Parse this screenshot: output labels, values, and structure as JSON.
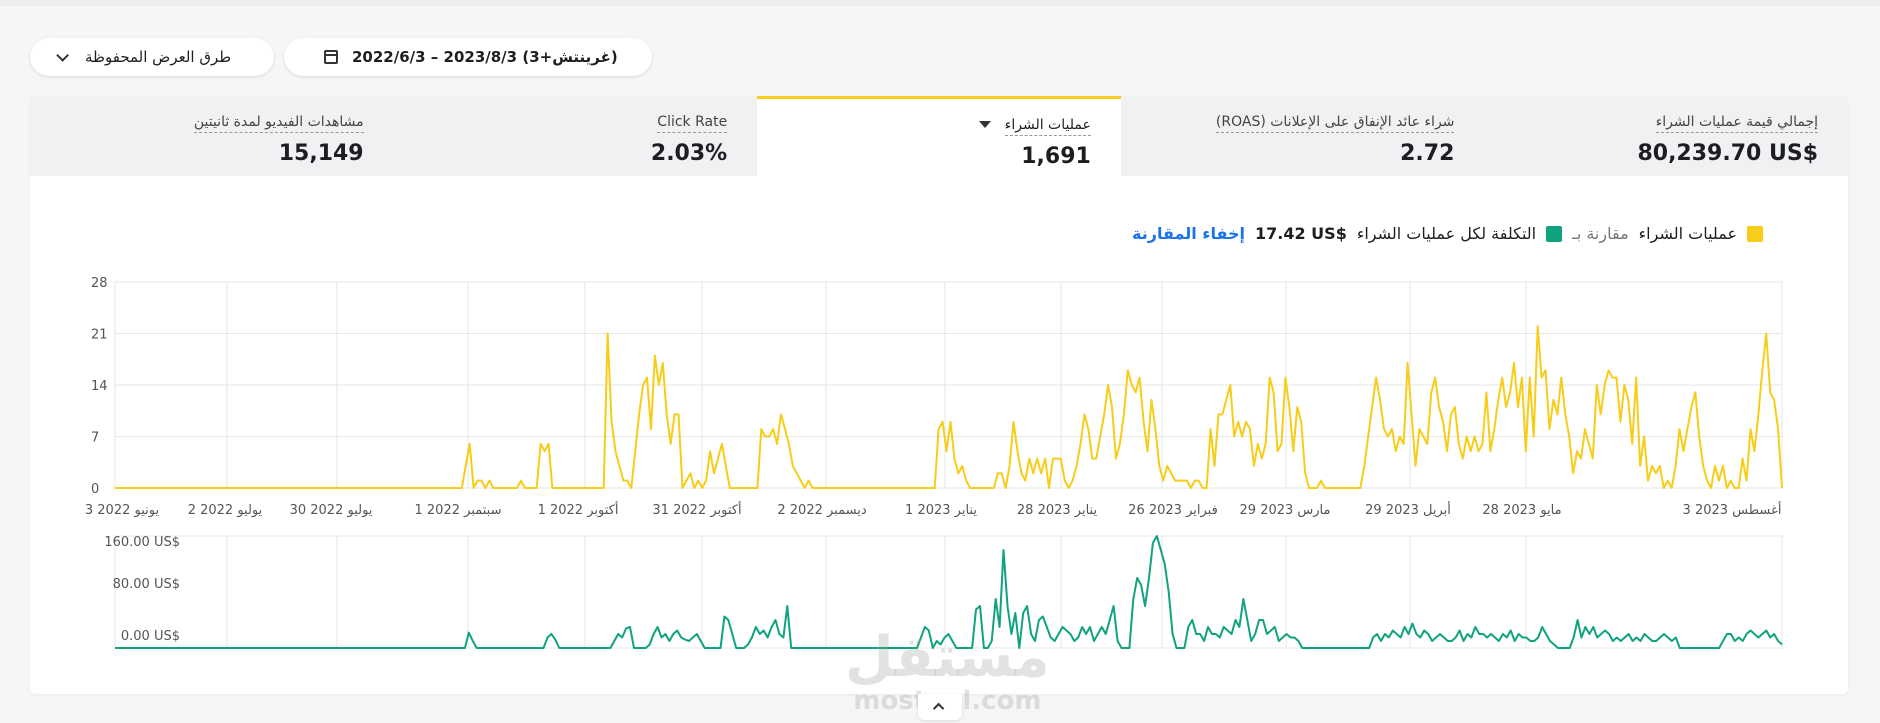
{
  "toolbar": {
    "saved_views_label": "طرق العرض المحفوظة",
    "date_range_label": "2022/6/3 – 2023/8/3 (غرينتش+3)"
  },
  "metrics": [
    {
      "label": "إجمالي قيمة عمليات الشراء",
      "value": "80,239.70 US$"
    },
    {
      "label": "شراء عائد الإنفاق على الإعلانات (ROAS)",
      "value": "2.72"
    },
    {
      "label": "عمليات الشراء",
      "value": "1,691",
      "active": true
    },
    {
      "label": "Click Rate",
      "value": "2.03%"
    },
    {
      "label": "مشاهدات الفيديو لمدة ثانيتين",
      "value": "15,149"
    }
  ],
  "legend": {
    "primary": "عمليات الشراء",
    "compare_prefix": "مقارنة بـ",
    "secondary": "التكلفة لكل عمليات الشراء",
    "secondary_value": "17.42 US$",
    "hide_link": "إخفاء المقارنة"
  },
  "colors": {
    "primary": "#f7cd19",
    "secondary": "#0fa37f",
    "link": "#1a73e8",
    "active_tab": "#f7cd19"
  },
  "chart_data": [
    {
      "type": "line",
      "title": "",
      "series": [
        {
          "name": "عمليات الشراء",
          "values": [
            0,
            0,
            0,
            0,
            0,
            0,
            0,
            0,
            0,
            0,
            0,
            0,
            0,
            0,
            0,
            0,
            0,
            0,
            0,
            0,
            0,
            0,
            0,
            0,
            0,
            0,
            0,
            0,
            0,
            0,
            0,
            0,
            0,
            0,
            0,
            0,
            0,
            0,
            0,
            0,
            0,
            0,
            0,
            0,
            0,
            0,
            0,
            0,
            0,
            0,
            0,
            0,
            0,
            0,
            0,
            0,
            0,
            0,
            0,
            0,
            0,
            0,
            0,
            0,
            0,
            0,
            0,
            0,
            0,
            0,
            0,
            0,
            0,
            0,
            0,
            0,
            0,
            0,
            0,
            0,
            0,
            0,
            0,
            0,
            0,
            0,
            0,
            0,
            0,
            3,
            6,
            0,
            1,
            1,
            0,
            1,
            0,
            0,
            0,
            0,
            0,
            0,
            0,
            1,
            0,
            0,
            0,
            0,
            6,
            5,
            6,
            0,
            0,
            0,
            0,
            0,
            0,
            0,
            0,
            0,
            0,
            0,
            0,
            0,
            0,
            21,
            9,
            5,
            3,
            1,
            1,
            0,
            5,
            10,
            14,
            15,
            8,
            18,
            14,
            17,
            10,
            6,
            10,
            10,
            0,
            1,
            2,
            0,
            1,
            0,
            1,
            5,
            2,
            4,
            6,
            3,
            0,
            0,
            0,
            0,
            0,
            0,
            0,
            0,
            8,
            7,
            7,
            8,
            6,
            10,
            8,
            6,
            3,
            2,
            1,
            0,
            1,
            0,
            0,
            0,
            0,
            0,
            0,
            0,
            0,
            0,
            0,
            0,
            0,
            0,
            0,
            0,
            0,
            0,
            0,
            0,
            0,
            0,
            0,
            0,
            0,
            0,
            0,
            0,
            0,
            0,
            0,
            0,
            0,
            8,
            9,
            5,
            9,
            4,
            2,
            3,
            1,
            0,
            0,
            0,
            0,
            0,
            0,
            0,
            2,
            2,
            0,
            3,
            9,
            5,
            2,
            1,
            4,
            2,
            4,
            2,
            4,
            0,
            4,
            4,
            4,
            1,
            0,
            1,
            3,
            6,
            10,
            8,
            4,
            4,
            7,
            10,
            14,
            11,
            4,
            6,
            10,
            16,
            14,
            13,
            15,
            9,
            5,
            12,
            8,
            3,
            1,
            3,
            2,
            1,
            1,
            1,
            1,
            0,
            1,
            1,
            0,
            0,
            8,
            3,
            10,
            10,
            12,
            14,
            7,
            9,
            7,
            9,
            8,
            3,
            6,
            4,
            6,
            15,
            13,
            5,
            6,
            15,
            11,
            5,
            11,
            9,
            2,
            0,
            0,
            0,
            1,
            0,
            0,
            0,
            0,
            0,
            0,
            0,
            0,
            0,
            0,
            3,
            7,
            11,
            15,
            12,
            8,
            7,
            8,
            5,
            7,
            6,
            17,
            10,
            3,
            8,
            7,
            6,
            13,
            15,
            11,
            9,
            5,
            10,
            11,
            6,
            4,
            7,
            5,
            7,
            5,
            6,
            13,
            5,
            8,
            12,
            15,
            11,
            13,
            17,
            11,
            15,
            5,
            15,
            7,
            22,
            15,
            16,
            8,
            12,
            10,
            15,
            10,
            7,
            2,
            5,
            4,
            8,
            6,
            4,
            14,
            10,
            14,
            16,
            15,
            15,
            9,
            14,
            12,
            6,
            15,
            3,
            7,
            1,
            3,
            2,
            3,
            0,
            1,
            0,
            3,
            8,
            5,
            8,
            11,
            13,
            7,
            3,
            1,
            0,
            3,
            1,
            3,
            0,
            1,
            0,
            0,
            4,
            1,
            8,
            5,
            10,
            16,
            21,
            13,
            12,
            8,
            0
          ]
        }
      ],
      "xlabels": [
        "3 يونيو 2022",
        "2 يوليو 2022",
        "30 يوليو 2022",
        "1 سبتمبر 2022",
        "1 أكتوبر 2022",
        "31 أكتوبر 2022",
        "2 ديسمبر 2022",
        "1 يناير 2023",
        "28 يناير 2023",
        "26 فبراير 2023",
        "29 مارس 2023",
        "29 أبريل 2023",
        "28 مايو 2023",
        "3 أغسطس 2023"
      ],
      "yticks": [
        "0",
        "7",
        "14",
        "21",
        "28"
      ],
      "ylim": [
        0,
        28
      ],
      "grid": true
    },
    {
      "type": "line",
      "title": "",
      "series": [
        {
          "name": "التكلفة لكل عمليات الشراء",
          "values": [
            0,
            0,
            0,
            0,
            0,
            0,
            0,
            0,
            0,
            0,
            0,
            0,
            0,
            0,
            0,
            0,
            0,
            0,
            0,
            0,
            0,
            0,
            0,
            0,
            0,
            0,
            0,
            0,
            0,
            0,
            0,
            0,
            0,
            0,
            0,
            0,
            0,
            0,
            0,
            0,
            0,
            0,
            0,
            0,
            0,
            0,
            0,
            0,
            0,
            0,
            0,
            0,
            0,
            0,
            0,
            0,
            0,
            0,
            0,
            0,
            0,
            0,
            0,
            0,
            0,
            0,
            0,
            0,
            0,
            0,
            0,
            0,
            0,
            0,
            0,
            0,
            0,
            0,
            0,
            0,
            0,
            0,
            0,
            0,
            0,
            0,
            0,
            0,
            0,
            0,
            22,
            10,
            0,
            0,
            0,
            0,
            0,
            0,
            0,
            0,
            0,
            0,
            0,
            0,
            0,
            0,
            0,
            0,
            0,
            0,
            15,
            20,
            12,
            0,
            0,
            0,
            0,
            0,
            0,
            0,
            0,
            0,
            0,
            0,
            0,
            0,
            0,
            10,
            20,
            15,
            28,
            30,
            0,
            0,
            0,
            0,
            5,
            20,
            30,
            15,
            20,
            10,
            20,
            25,
            15,
            12,
            10,
            15,
            20,
            10,
            0,
            0,
            0,
            0,
            0,
            45,
            40,
            20,
            0,
            0,
            0,
            5,
            15,
            30,
            20,
            25,
            15,
            30,
            40,
            20,
            15,
            60,
            0,
            0,
            0,
            0,
            0,
            0,
            0,
            0,
            0,
            0,
            0,
            0,
            0,
            0,
            0,
            0,
            0,
            0,
            0,
            0,
            0,
            0,
            0,
            0,
            0,
            0,
            0,
            0,
            0,
            0,
            0,
            0,
            0,
            15,
            30,
            25,
            0,
            10,
            5,
            15,
            20,
            10,
            0,
            0,
            0,
            0,
            0,
            55,
            60,
            0,
            0,
            10,
            70,
            30,
            140,
            60,
            20,
            50,
            0,
            50,
            60,
            20,
            10,
            40,
            45,
            30,
            15,
            10,
            20,
            30,
            25,
            20,
            10,
            15,
            30,
            20,
            30,
            10,
            20,
            30,
            20,
            40,
            60,
            10,
            0,
            0,
            0,
            70,
            100,
            90,
            60,
            100,
            150,
            160,
            140,
            120,
            80,
            20,
            0,
            0,
            0,
            30,
            40,
            20,
            20,
            10,
            30,
            20,
            20,
            15,
            30,
            25,
            20,
            40,
            30,
            70,
            40,
            10,
            20,
            40,
            40,
            20,
            25,
            30,
            10,
            15,
            20,
            15,
            15,
            10,
            0,
            0,
            0,
            0,
            0,
            0,
            0,
            0,
            0,
            0,
            0,
            0,
            0,
            0,
            0,
            0,
            0,
            0,
            15,
            20,
            10,
            20,
            15,
            25,
            20,
            15,
            30,
            20,
            35,
            20,
            15,
            25,
            20,
            10,
            15,
            20,
            15,
            10,
            10,
            15,
            25,
            10,
            20,
            15,
            30,
            20,
            20,
            15,
            20,
            15,
            10,
            20,
            15,
            25,
            10,
            20,
            15,
            15,
            10,
            10,
            15,
            30,
            20,
            10,
            5,
            0,
            0,
            0,
            0,
            15,
            40,
            15,
            30,
            20,
            30,
            15,
            20,
            25,
            20,
            10,
            15,
            10,
            15,
            20,
            10,
            15,
            10,
            20,
            15,
            10,
            10,
            15,
            20,
            15,
            10,
            15,
            0,
            0,
            0,
            0,
            0,
            0,
            0,
            0,
            0,
            0,
            0,
            10,
            20,
            20,
            10,
            15,
            10,
            20,
            25,
            20,
            15,
            20,
            25,
            15,
            20,
            10,
            5
          ]
        }
      ],
      "yticks": [
        "0.00 US$",
        "80.00 US$",
        "160.00 US$"
      ],
      "ylim": [
        0,
        160
      ],
      "grid": true
    }
  ]
}
